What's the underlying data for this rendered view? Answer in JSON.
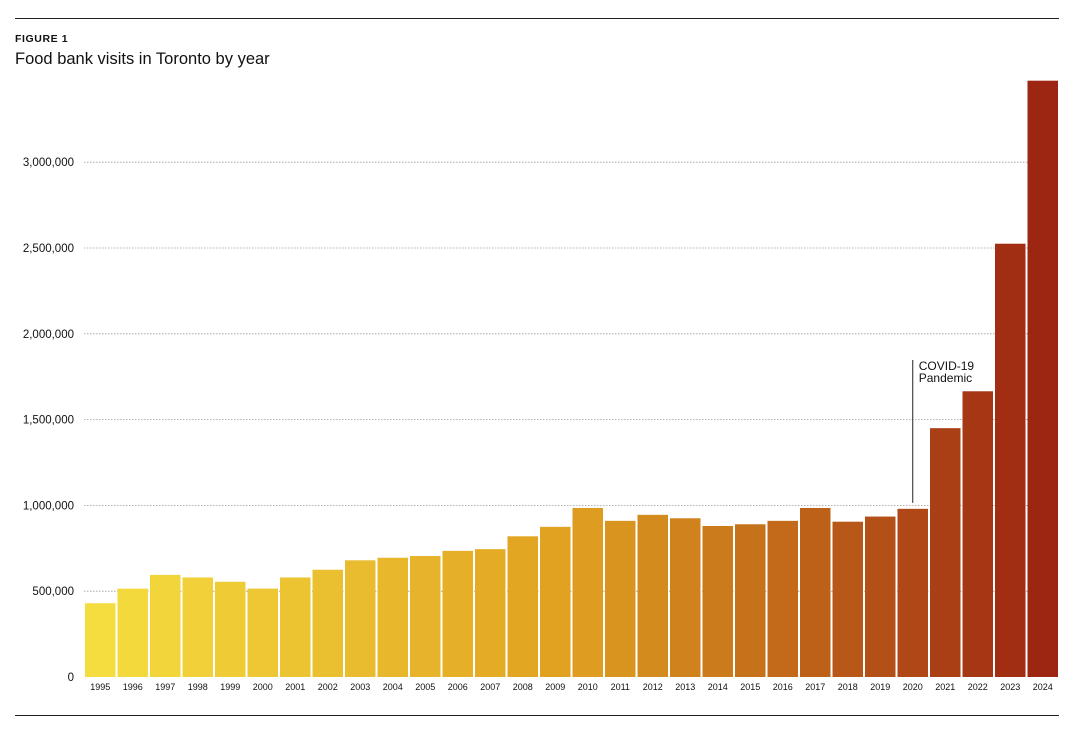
{
  "figure_label": "FIGURE 1",
  "chart_data": {
    "type": "bar",
    "title": "Food bank visits in Toronto by year",
    "xlabel": "",
    "ylabel": "",
    "ylim": [
      0,
      3500000
    ],
    "grid": true,
    "yticks": [
      {
        "value": 0,
        "label": "0"
      },
      {
        "value": 500000,
        "label": "500,000"
      },
      {
        "value": 1000000,
        "label": "1,000,000"
      },
      {
        "value": 1500000,
        "label": "1,500,000"
      },
      {
        "value": 2000000,
        "label": "2,000,000"
      },
      {
        "value": 2500000,
        "label": "2,500,000"
      },
      {
        "value": 3000000,
        "label": "3,000,000"
      }
    ],
    "categories": [
      "1995",
      "1996",
      "1997",
      "1998",
      "1999",
      "2000",
      "2001",
      "2002",
      "2003",
      "2004",
      "2005",
      "2006",
      "2007",
      "2008",
      "2009",
      "2010",
      "2011",
      "2012",
      "2013",
      "2014",
      "2015",
      "2016",
      "2017",
      "2018",
      "2019",
      "2020",
      "2021",
      "2022",
      "2023",
      "2024"
    ],
    "values": [
      430000,
      515000,
      595000,
      580000,
      555000,
      515000,
      580000,
      625000,
      680000,
      695000,
      705000,
      735000,
      745000,
      820000,
      875000,
      985000,
      910000,
      945000,
      925000,
      880000,
      890000,
      910000,
      985000,
      905000,
      935000,
      980000,
      1450000,
      1665000,
      2525000,
      3475000
    ],
    "colors": {
      "start": "#f5dd3f",
      "mid": "#e0a020",
      "end": "#9c2612"
    },
    "annotation": {
      "category": "2020",
      "lines": [
        "COVID-19",
        "Pandemic"
      ]
    }
  }
}
